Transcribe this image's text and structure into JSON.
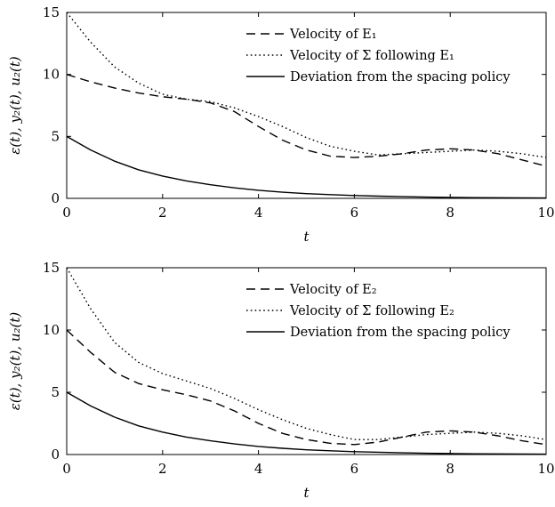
{
  "chart_data": [
    {
      "type": "line",
      "xlabel": "t",
      "ylabel": "ε(t), y₂(t), u₂(t)",
      "xlim": [
        0,
        10
      ],
      "ylim": [
        0,
        15
      ],
      "x_ticks": [
        "0",
        "2",
        "4",
        "6",
        "8",
        "10"
      ],
      "y_ticks": [
        "0",
        "5",
        "10",
        "15"
      ],
      "grid": false,
      "legend_position": "top-right",
      "x": [
        0,
        0.5,
        1,
        1.5,
        2,
        2.5,
        3,
        3.5,
        4,
        4.5,
        5,
        5.5,
        6,
        6.5,
        7,
        7.5,
        8,
        8.5,
        9,
        9.5,
        10
      ],
      "series": [
        {
          "name": "Velocity of E₁",
          "style": "dashed",
          "values": [
            10.0,
            9.4,
            8.9,
            8.5,
            8.2,
            8.0,
            7.7,
            7.0,
            5.8,
            4.7,
            3.9,
            3.4,
            3.3,
            3.4,
            3.6,
            3.9,
            4.0,
            3.9,
            3.6,
            3.1,
            2.6
          ]
        },
        {
          "name": "Velocity of Σ following E₁",
          "style": "dotted",
          "values": [
            15.0,
            12.6,
            10.6,
            9.3,
            8.4,
            8.0,
            7.8,
            7.3,
            6.6,
            5.8,
            4.9,
            4.2,
            3.8,
            3.5,
            3.6,
            3.7,
            3.8,
            3.9,
            3.8,
            3.6,
            3.3
          ]
        },
        {
          "name": "Deviation from the spacing policy",
          "style": "solid",
          "values": [
            5.0,
            3.9,
            3.0,
            2.3,
            1.8,
            1.4,
            1.1,
            0.85,
            0.65,
            0.5,
            0.38,
            0.3,
            0.23,
            0.18,
            0.14,
            0.1,
            0.08,
            0.06,
            0.05,
            0.04,
            0.03
          ]
        }
      ]
    },
    {
      "type": "line",
      "xlabel": "t",
      "ylabel": "ε(t), y₂(t), u₂(t)",
      "xlim": [
        0,
        10
      ],
      "ylim": [
        0,
        15
      ],
      "x_ticks": [
        "0",
        "2",
        "4",
        "6",
        "8",
        "10"
      ],
      "y_ticks": [
        "0",
        "5",
        "10",
        "15"
      ],
      "grid": false,
      "legend_position": "top-right",
      "x": [
        0,
        0.5,
        1,
        1.5,
        2,
        2.5,
        3,
        3.5,
        4,
        4.5,
        5,
        5.5,
        6,
        6.5,
        7,
        7.5,
        8,
        8.5,
        9,
        9.5,
        10
      ],
      "series": [
        {
          "name": "Velocity of E₂",
          "style": "dashed",
          "values": [
            10.0,
            8.2,
            6.6,
            5.7,
            5.2,
            4.8,
            4.3,
            3.5,
            2.5,
            1.7,
            1.2,
            0.9,
            0.8,
            1.0,
            1.4,
            1.8,
            1.9,
            1.8,
            1.5,
            1.1,
            0.8
          ]
        },
        {
          "name": "Velocity of Σ following E₂",
          "style": "dotted",
          "values": [
            15.0,
            11.7,
            9.0,
            7.4,
            6.5,
            5.9,
            5.3,
            4.5,
            3.6,
            2.8,
            2.1,
            1.6,
            1.2,
            1.2,
            1.4,
            1.6,
            1.7,
            1.8,
            1.7,
            1.5,
            1.2
          ]
        },
        {
          "name": "Deviation from the spacing policy",
          "style": "solid",
          "values": [
            5.0,
            3.9,
            3.0,
            2.3,
            1.8,
            1.4,
            1.1,
            0.85,
            0.65,
            0.5,
            0.38,
            0.3,
            0.23,
            0.18,
            0.14,
            0.1,
            0.08,
            0.06,
            0.05,
            0.04,
            0.03
          ]
        }
      ]
    }
  ]
}
